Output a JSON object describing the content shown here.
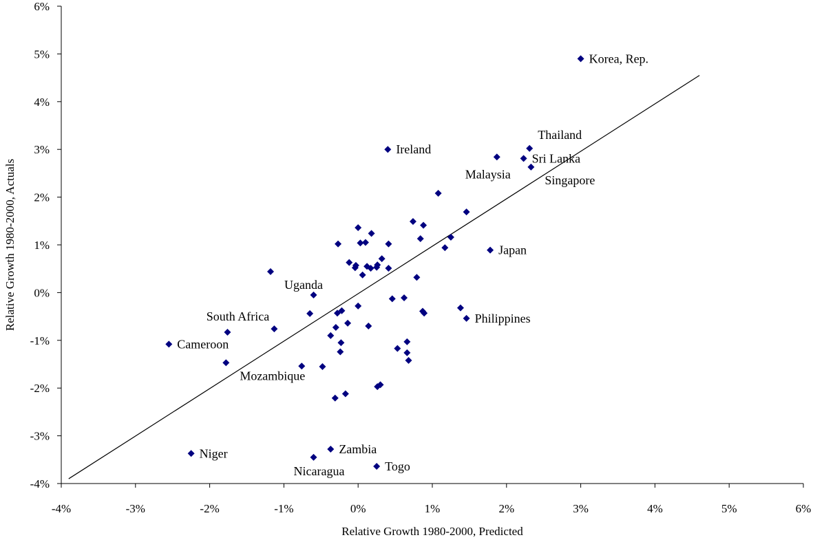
{
  "chart_data": {
    "type": "scatter",
    "title": "",
    "xlabel": "Relative Growth 1980-2000, Predicted",
    "ylabel": "Relative Growth 1980-2000, Actuals",
    "xlim": [
      -0.04,
      0.06
    ],
    "ylim": [
      -0.04,
      0.06
    ],
    "xticks": [
      -0.04,
      -0.03,
      -0.02,
      -0.01,
      0,
      0.01,
      0.02,
      0.03,
      0.04,
      0.05,
      0.06
    ],
    "yticks": [
      -0.04,
      -0.03,
      -0.02,
      -0.01,
      0,
      0.01,
      0.02,
      0.03,
      0.04,
      0.05,
      0.06
    ],
    "xtick_labels": [
      "-4%",
      "-3%",
      "-2%",
      "-1%",
      "0%",
      "1%",
      "2%",
      "3%",
      "4%",
      "5%",
      "6%"
    ],
    "ytick_labels": [
      "-4%",
      "-3%",
      "-2%",
      "-1%",
      "0%",
      "1%",
      "2%",
      "3%",
      "4%",
      "5%",
      "6%"
    ],
    "grid": false,
    "legend": "none",
    "marker_color": "#000080",
    "trend_line": {
      "x": [
        -0.039,
        0.046
      ],
      "y": [
        -0.039,
        0.0455
      ]
    },
    "labeled_points": [
      {
        "label": "Korea, Rep.",
        "x": 0.03,
        "y": 0.049,
        "label_pos": "right"
      },
      {
        "label": "Thailand",
        "x": 0.0231,
        "y": 0.0302,
        "label_pos": "right-up"
      },
      {
        "label": "Sri Lanka",
        "x": 0.0223,
        "y": 0.0281,
        "label_pos": "right"
      },
      {
        "label": "Singapore",
        "x": 0.0233,
        "y": 0.0263,
        "label_pos": "right-down"
      },
      {
        "label": "Malaysia",
        "x": 0.0187,
        "y": 0.0284,
        "label_pos": "left-down"
      },
      {
        "label": "Ireland",
        "x": 0.004,
        "y": 0.03,
        "label_pos": "right"
      },
      {
        "label": "Japan",
        "x": 0.0178,
        "y": 0.0089,
        "label_pos": "right"
      },
      {
        "label": "Philippines",
        "x": 0.0146,
        "y": -0.0054,
        "label_pos": "right"
      },
      {
        "label": "Uganda",
        "x": -0.0118,
        "y": 0.0044,
        "label_pos": "right-down"
      },
      {
        "label": "South Africa",
        "x": -0.0176,
        "y": -0.0083,
        "label_pos": "up"
      },
      {
        "label": "Cameroon",
        "x": -0.0255,
        "y": -0.0108,
        "label_pos": "right"
      },
      {
        "label": "Mozambique",
        "x": -0.0178,
        "y": -0.0147,
        "label_pos": "right-down"
      },
      {
        "label": "Niger",
        "x": -0.0225,
        "y": -0.0337,
        "label_pos": "right"
      },
      {
        "label": "Zambia",
        "x": -0.0037,
        "y": -0.0328,
        "label_pos": "right"
      },
      {
        "label": "Nicaragua",
        "x": -0.006,
        "y": -0.0345,
        "label_pos": "down"
      },
      {
        "label": "Togo",
        "x": 0.0025,
        "y": -0.0364,
        "label_pos": "right"
      }
    ],
    "points": [
      {
        "x": 0.03,
        "y": 0.049
      },
      {
        "x": 0.0231,
        "y": 0.0302
      },
      {
        "x": 0.0223,
        "y": 0.0281
      },
      {
        "x": 0.0233,
        "y": 0.0263
      },
      {
        "x": 0.0187,
        "y": 0.0284
      },
      {
        "x": 0.004,
        "y": 0.03
      },
      {
        "x": 0.0108,
        "y": 0.0208
      },
      {
        "x": 0.0146,
        "y": 0.0169
      },
      {
        "x": 0.0074,
        "y": 0.0149
      },
      {
        "x": 0.0088,
        "y": 0.0141
      },
      {
        "x": 0.0,
        "y": 0.0136
      },
      {
        "x": 0.0018,
        "y": 0.0124
      },
      {
        "x": 0.0125,
        "y": 0.0116
      },
      {
        "x": 0.0084,
        "y": 0.0113
      },
      {
        "x": 0.0003,
        "y": 0.0104
      },
      {
        "x": 0.001,
        "y": 0.0105
      },
      {
        "x": -0.0027,
        "y": 0.0102
      },
      {
        "x": 0.0041,
        "y": 0.0102
      },
      {
        "x": 0.0117,
        "y": 0.0094
      },
      {
        "x": 0.0178,
        "y": 0.0089
      },
      {
        "x": 0.0032,
        "y": 0.0071
      },
      {
        "x": -0.0012,
        "y": 0.0063
      },
      {
        "x": -0.0003,
        "y": 0.0057
      },
      {
        "x": -0.0004,
        "y": 0.0052
      },
      {
        "x": 0.0012,
        "y": 0.0055
      },
      {
        "x": 0.0017,
        "y": 0.0051
      },
      {
        "x": 0.0026,
        "y": 0.0058
      },
      {
        "x": 0.0025,
        "y": 0.0053
      },
      {
        "x": 0.0041,
        "y": 0.0051
      },
      {
        "x": 0.0006,
        "y": 0.0037
      },
      {
        "x": 0.0079,
        "y": 0.0032
      },
      {
        "x": -0.0118,
        "y": 0.0044
      },
      {
        "x": -0.006,
        "y": -0.0005
      },
      {
        "x": 0.0046,
        "y": -0.0013
      },
      {
        "x": 0.0062,
        "y": -0.0011
      },
      {
        "x": 0.0,
        "y": -0.0028
      },
      {
        "x": 0.0138,
        "y": -0.0032
      },
      {
        "x": 0.0087,
        "y": -0.0039
      },
      {
        "x": 0.0089,
        "y": -0.0043
      },
      {
        "x": -0.0022,
        "y": -0.0038
      },
      {
        "x": -0.0028,
        "y": -0.0043
      },
      {
        "x": -0.0065,
        "y": -0.0044
      },
      {
        "x": 0.0146,
        "y": -0.0054
      },
      {
        "x": -0.0014,
        "y": -0.0064
      },
      {
        "x": 0.0014,
        "y": -0.007
      },
      {
        "x": -0.003,
        "y": -0.0073
      },
      {
        "x": -0.0113,
        "y": -0.0076
      },
      {
        "x": -0.0176,
        "y": -0.0083
      },
      {
        "x": -0.0037,
        "y": -0.009
      },
      {
        "x": 0.0066,
        "y": -0.0103
      },
      {
        "x": -0.0023,
        "y": -0.0105
      },
      {
        "x": -0.0255,
        "y": -0.0108
      },
      {
        "x": 0.0053,
        "y": -0.0117
      },
      {
        "x": -0.0024,
        "y": -0.0124
      },
      {
        "x": 0.0066,
        "y": -0.0126
      },
      {
        "x": 0.0068,
        "y": -0.0142
      },
      {
        "x": -0.0178,
        "y": -0.0147
      },
      {
        "x": -0.0076,
        "y": -0.0154
      },
      {
        "x": -0.0048,
        "y": -0.0155
      },
      {
        "x": 0.003,
        "y": -0.0193
      },
      {
        "x": 0.0026,
        "y": -0.0197
      },
      {
        "x": -0.0017,
        "y": -0.0212
      },
      {
        "x": -0.0031,
        "y": -0.0221
      },
      {
        "x": -0.0225,
        "y": -0.0337
      },
      {
        "x": -0.0037,
        "y": -0.0328
      },
      {
        "x": -0.006,
        "y": -0.0345
      },
      {
        "x": 0.0025,
        "y": -0.0364
      }
    ]
  }
}
